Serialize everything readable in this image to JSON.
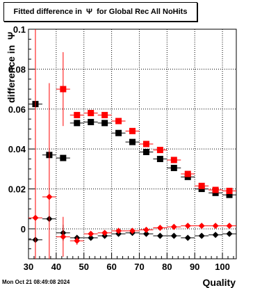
{
  "chart_data": {
    "type": "scatter",
    "title": "Fitted difference in  Ψ  for Global Rec All NoHits",
    "xlabel": "Quality",
    "ylabel": "difference in  Ψ",
    "xlim": [
      30,
      105
    ],
    "ylim": [
      -0.015,
      0.1
    ],
    "x_ticks": [
      30,
      40,
      50,
      60,
      70,
      80,
      90,
      100
    ],
    "y_ticks": [
      0,
      0.02,
      0.04,
      0.06,
      0.08,
      0.1
    ],
    "y_tick_labels": [
      "0",
      "0.02",
      "0.04",
      "0.06",
      "0.08",
      "0.1"
    ],
    "grid": true,
    "series": [
      {
        "marker": "square",
        "color": "#000000",
        "x": [
          32.5,
          37.5,
          42.5,
          47.5,
          52.5,
          57.5,
          62.5,
          67.5,
          72.5,
          77.5,
          82.5,
          87.5,
          92.5,
          97.5,
          102.5
        ],
        "y": [
          0.0625,
          0.037,
          0.0355,
          0.053,
          0.0535,
          0.053,
          0.048,
          0.0435,
          0.0385,
          0.035,
          0.0305,
          0.026,
          0.02,
          0.018,
          0.017
        ],
        "err": [
          0.0,
          0.0,
          0.0,
          0.0,
          0.0,
          0.0,
          0.0,
          0.0,
          0.0,
          0.0,
          0.0,
          0.0,
          0.0,
          0.0,
          0.0
        ]
      },
      {
        "marker": "square",
        "color": "#ff0000",
        "x": [
          42.5,
          47.5,
          52.5,
          57.5,
          62.5,
          67.5,
          72.5,
          77.5,
          82.5,
          87.5,
          92.5,
          97.5,
          102.5
        ],
        "y": [
          0.07,
          0.057,
          0.058,
          0.057,
          0.054,
          0.049,
          0.0425,
          0.0395,
          0.0345,
          0.0275,
          0.0215,
          0.0195,
          0.019
        ],
        "err": [
          0.0185,
          0.0,
          0.0,
          0.0,
          0.0,
          0.0,
          0.0,
          0.0,
          0.0,
          0.0,
          0.0,
          0.0,
          0.0
        ]
      },
      {
        "marker": "diamond",
        "color": "#000000",
        "x": [
          32.5,
          37.5,
          42.5,
          47.5,
          52.5,
          57.5,
          62.5,
          67.5,
          72.5,
          77.5,
          82.5,
          87.5,
          92.5,
          97.5,
          102.5
        ],
        "y": [
          -0.0055,
          0.005,
          -0.002,
          -0.0045,
          -0.0045,
          -0.0035,
          -0.0025,
          -0.002,
          -0.0025,
          -0.0035,
          -0.0035,
          -0.0045,
          -0.0035,
          -0.003,
          -0.0025
        ],
        "err": [
          0.0,
          0.0,
          0.004,
          0.0,
          0.0,
          0.0,
          0.0,
          0.0,
          0.0,
          0.0,
          0.0,
          0.0,
          0.0,
          0.0,
          0.0
        ]
      },
      {
        "marker": "diamond",
        "color": "#ff0000",
        "x": [
          32.5,
          37.5,
          42.5,
          47.5,
          52.5,
          57.5,
          62.5,
          67.5,
          72.5,
          77.5,
          82.5,
          87.5,
          92.5,
          97.5,
          102.5
        ],
        "y": [
          0.0055,
          0.016,
          -0.004,
          -0.006,
          -0.0025,
          -0.002,
          -0.001,
          -0.001,
          -0.0005,
          0.0005,
          0.001,
          0.0015,
          0.0015,
          0.0015,
          0.0015
        ],
        "err": [
          0.1,
          0.057,
          0.01,
          0.002,
          0.0,
          0.0,
          0.0,
          0.0,
          0.0,
          0.0,
          0.0,
          0.0,
          0.0,
          0.0,
          0.0
        ]
      }
    ]
  },
  "footer": {
    "timestamp": "Mon Oct 21 08:49:08 2024"
  }
}
